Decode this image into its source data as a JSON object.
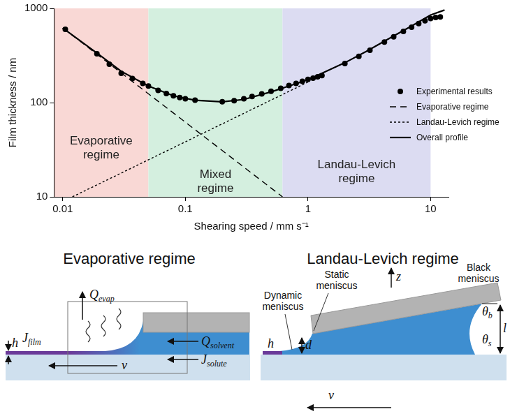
{
  "chart_data": {
    "type": "line",
    "x_label": "Shearing speed / mm s⁻¹",
    "y_label": "Film thickness / nm",
    "log": true,
    "grid": false,
    "legend": "right",
    "xlim": [
      0.0085,
      14
    ],
    "ylim": [
      10,
      1000
    ],
    "xticks": [
      0.01,
      0.1,
      1,
      10
    ],
    "yticks": [
      10,
      100,
      1000
    ],
    "regions": [
      {
        "label": "Evaporative regime",
        "from": 0.0085,
        "to": 0.05,
        "color": "#f9d8d5"
      },
      {
        "label": "Mixed regime",
        "from": 0.05,
        "to": 0.62,
        "color": "#d4efdf"
      },
      {
        "label": "Landau-Levich regime",
        "from": 0.62,
        "to": 10,
        "color": "#dcdcf2"
      }
    ],
    "series": [
      {
        "name": "Experimental results",
        "type": "scatter",
        "marker": "circle",
        "line_style": "none",
        "color": "#000000",
        "x": [
          0.0105,
          0.019,
          0.024,
          0.03,
          0.037,
          0.045,
          0.05,
          0.06,
          0.07,
          0.08,
          0.09,
          0.1,
          0.12,
          0.2,
          0.25,
          0.3,
          0.35,
          0.42,
          0.5,
          0.6,
          0.7,
          0.8,
          0.9,
          1.0,
          1.1,
          1.2,
          1.3,
          2.0,
          2.6,
          3.2,
          4.2,
          5.0,
          6.0,
          7.0,
          8.0,
          9.0,
          10.0,
          11.0,
          12.0
        ],
        "values": [
          600,
          330,
          255,
          205,
          180,
          160,
          150,
          135,
          125,
          118,
          113,
          110,
          106,
          102,
          105,
          110,
          116,
          124,
          132,
          142,
          152,
          160,
          168,
          176,
          182,
          188,
          194,
          260,
          310,
          360,
          440,
          500,
          570,
          630,
          690,
          740,
          780,
          800,
          810
        ]
      },
      {
        "name": "Evaporative regime",
        "type": "line",
        "marker": "none",
        "line_style": "dashed",
        "color": "#000000",
        "x": [
          0.01,
          0.62
        ],
        "values": [
          620,
          10
        ]
      },
      {
        "name": "Landau-Levich regime",
        "type": "line",
        "marker": "none",
        "line_style": "dotted",
        "color": "#000000",
        "x": [
          0.012,
          1
        ],
        "values": [
          10,
          165
        ]
      },
      {
        "name": "Overall profile",
        "type": "line",
        "marker": "none",
        "line_style": "solid",
        "color": "#000000",
        "x": [
          0.01,
          0.02,
          0.03,
          0.05,
          0.08,
          0.12,
          0.2,
          0.3,
          0.5,
          0.7,
          1,
          2,
          3,
          5,
          7,
          10,
          13
        ],
        "values": [
          620,
          320,
          215,
          150,
          118,
          106,
          102,
          108,
          130,
          150,
          175,
          265,
          350,
          510,
          650,
          850,
          960
        ]
      }
    ]
  },
  "diagrams": [
    {
      "title": "Evaporative regime",
      "labels": [
        {
          "text": "Q",
          "sub": "evap"
        },
        {
          "text": "J",
          "sub": "film"
        },
        {
          "text": "h"
        },
        {
          "text": "Q",
          "sub": "solvent"
        },
        {
          "text": "J",
          "sub": "solute"
        },
        {
          "text": "v"
        }
      ]
    },
    {
      "title": "Landau-Levich regime",
      "labels": [
        {
          "text": "Static meniscus"
        },
        {
          "text": "Dynamic meniscus"
        },
        {
          "text": "Black meniscus"
        },
        {
          "text": "z"
        },
        {
          "text": "h"
        },
        {
          "text": "d"
        },
        {
          "text": "θ",
          "sub": "b"
        },
        {
          "text": "θ",
          "sub": "s"
        },
        {
          "text": "l"
        },
        {
          "text": "v"
        }
      ]
    }
  ]
}
